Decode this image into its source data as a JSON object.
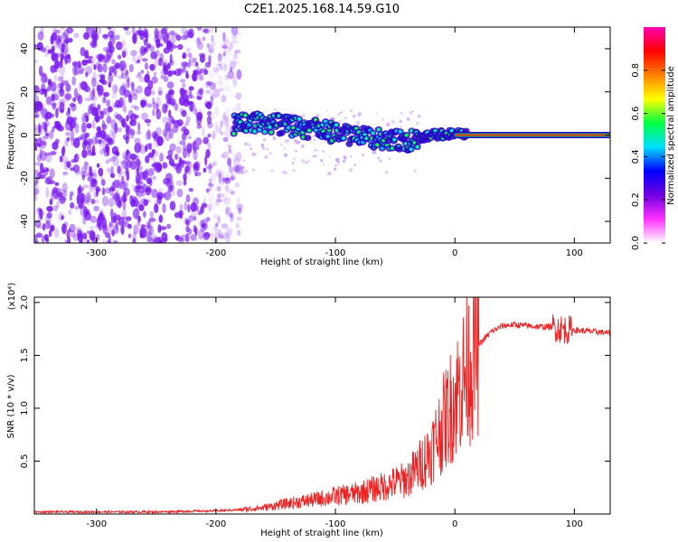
{
  "title": "C2E1.2025.168.14.59.G10",
  "chart_data": [
    {
      "type": "heatmap",
      "title": "C2E1.2025.168.14.59.G10",
      "xlabel": "Height of straight line (km)",
      "ylabel": "Frequency (Hz)",
      "xlim": [
        -352,
        130
      ],
      "ylim": [
        -50,
        50
      ],
      "xticks": [
        -300,
        -200,
        -100,
        0,
        100
      ],
      "yticks": [
        -40,
        -20,
        0,
        20,
        40
      ],
      "colorbar": {
        "label": "Normalized spectral amplitude",
        "range": [
          0,
          1
        ],
        "ticks": [
          0.0,
          0.2,
          0.4,
          0.6,
          0.8
        ],
        "tick_labels": [
          "0.0",
          "0.2",
          "0.4",
          "0.6",
          "0.8"
        ],
        "colors": [
          "#ffffff",
          "#ff30ff",
          "#7000e0",
          "#0000ff",
          "#00e0ff",
          "#00ff40",
          "#ffff00",
          "#ff8000",
          "#ff0000",
          "#ff00b0"
        ]
      },
      "features": {
        "noise_region_x": [
          -352,
          -180
        ],
        "noise_color": "#7a1af0",
        "signal_track": {
          "x": [
            -185,
            -160,
            -140,
            -120,
            -100,
            -80,
            -60,
            -40,
            -20,
            0,
            20,
            60,
            100,
            130
          ],
          "y": [
            5,
            6,
            4,
            3,
            1,
            -1,
            -2,
            -3,
            0,
            1,
            0,
            0,
            0,
            0
          ]
        },
        "steady_line_x": [
          0,
          130
        ],
        "steady_line_y": 0
      }
    },
    {
      "type": "line",
      "xlabel": "Height of straight line (km)",
      "ylabel": "SNR (10 * v/v)",
      "y_multiplier": "(x10⁴)",
      "xlim": [
        -352,
        130
      ],
      "ylim": [
        0,
        2.05
      ],
      "xticks": [
        -300,
        -200,
        -100,
        0,
        100
      ],
      "yticks": [
        0.5,
        1.0,
        1.5,
        2.0
      ],
      "ytick_labels": [
        "0.5",
        "1.0",
        "1.5",
        "2.0"
      ],
      "line_color": "#ee2222",
      "series": [
        {
          "x": [
            -352,
            -300,
            -250,
            -200,
            -180,
            -160,
            -140,
            -120,
            -100,
            -80,
            -60,
            -40,
            -30,
            -20,
            -10,
            0,
            10,
            20,
            30,
            40,
            50,
            60,
            70,
            80,
            85,
            90,
            95,
            100,
            110,
            120,
            130
          ],
          "values": [
            0.02,
            0.02,
            0.02,
            0.03,
            0.04,
            0.06,
            0.1,
            0.13,
            0.17,
            0.2,
            0.26,
            0.33,
            0.45,
            0.6,
            0.85,
            1.1,
            1.35,
            1.6,
            1.72,
            1.78,
            1.79,
            1.78,
            1.77,
            1.77,
            1.76,
            1.75,
            1.74,
            1.74,
            1.73,
            1.72,
            1.71
          ]
        }
      ]
    }
  ]
}
